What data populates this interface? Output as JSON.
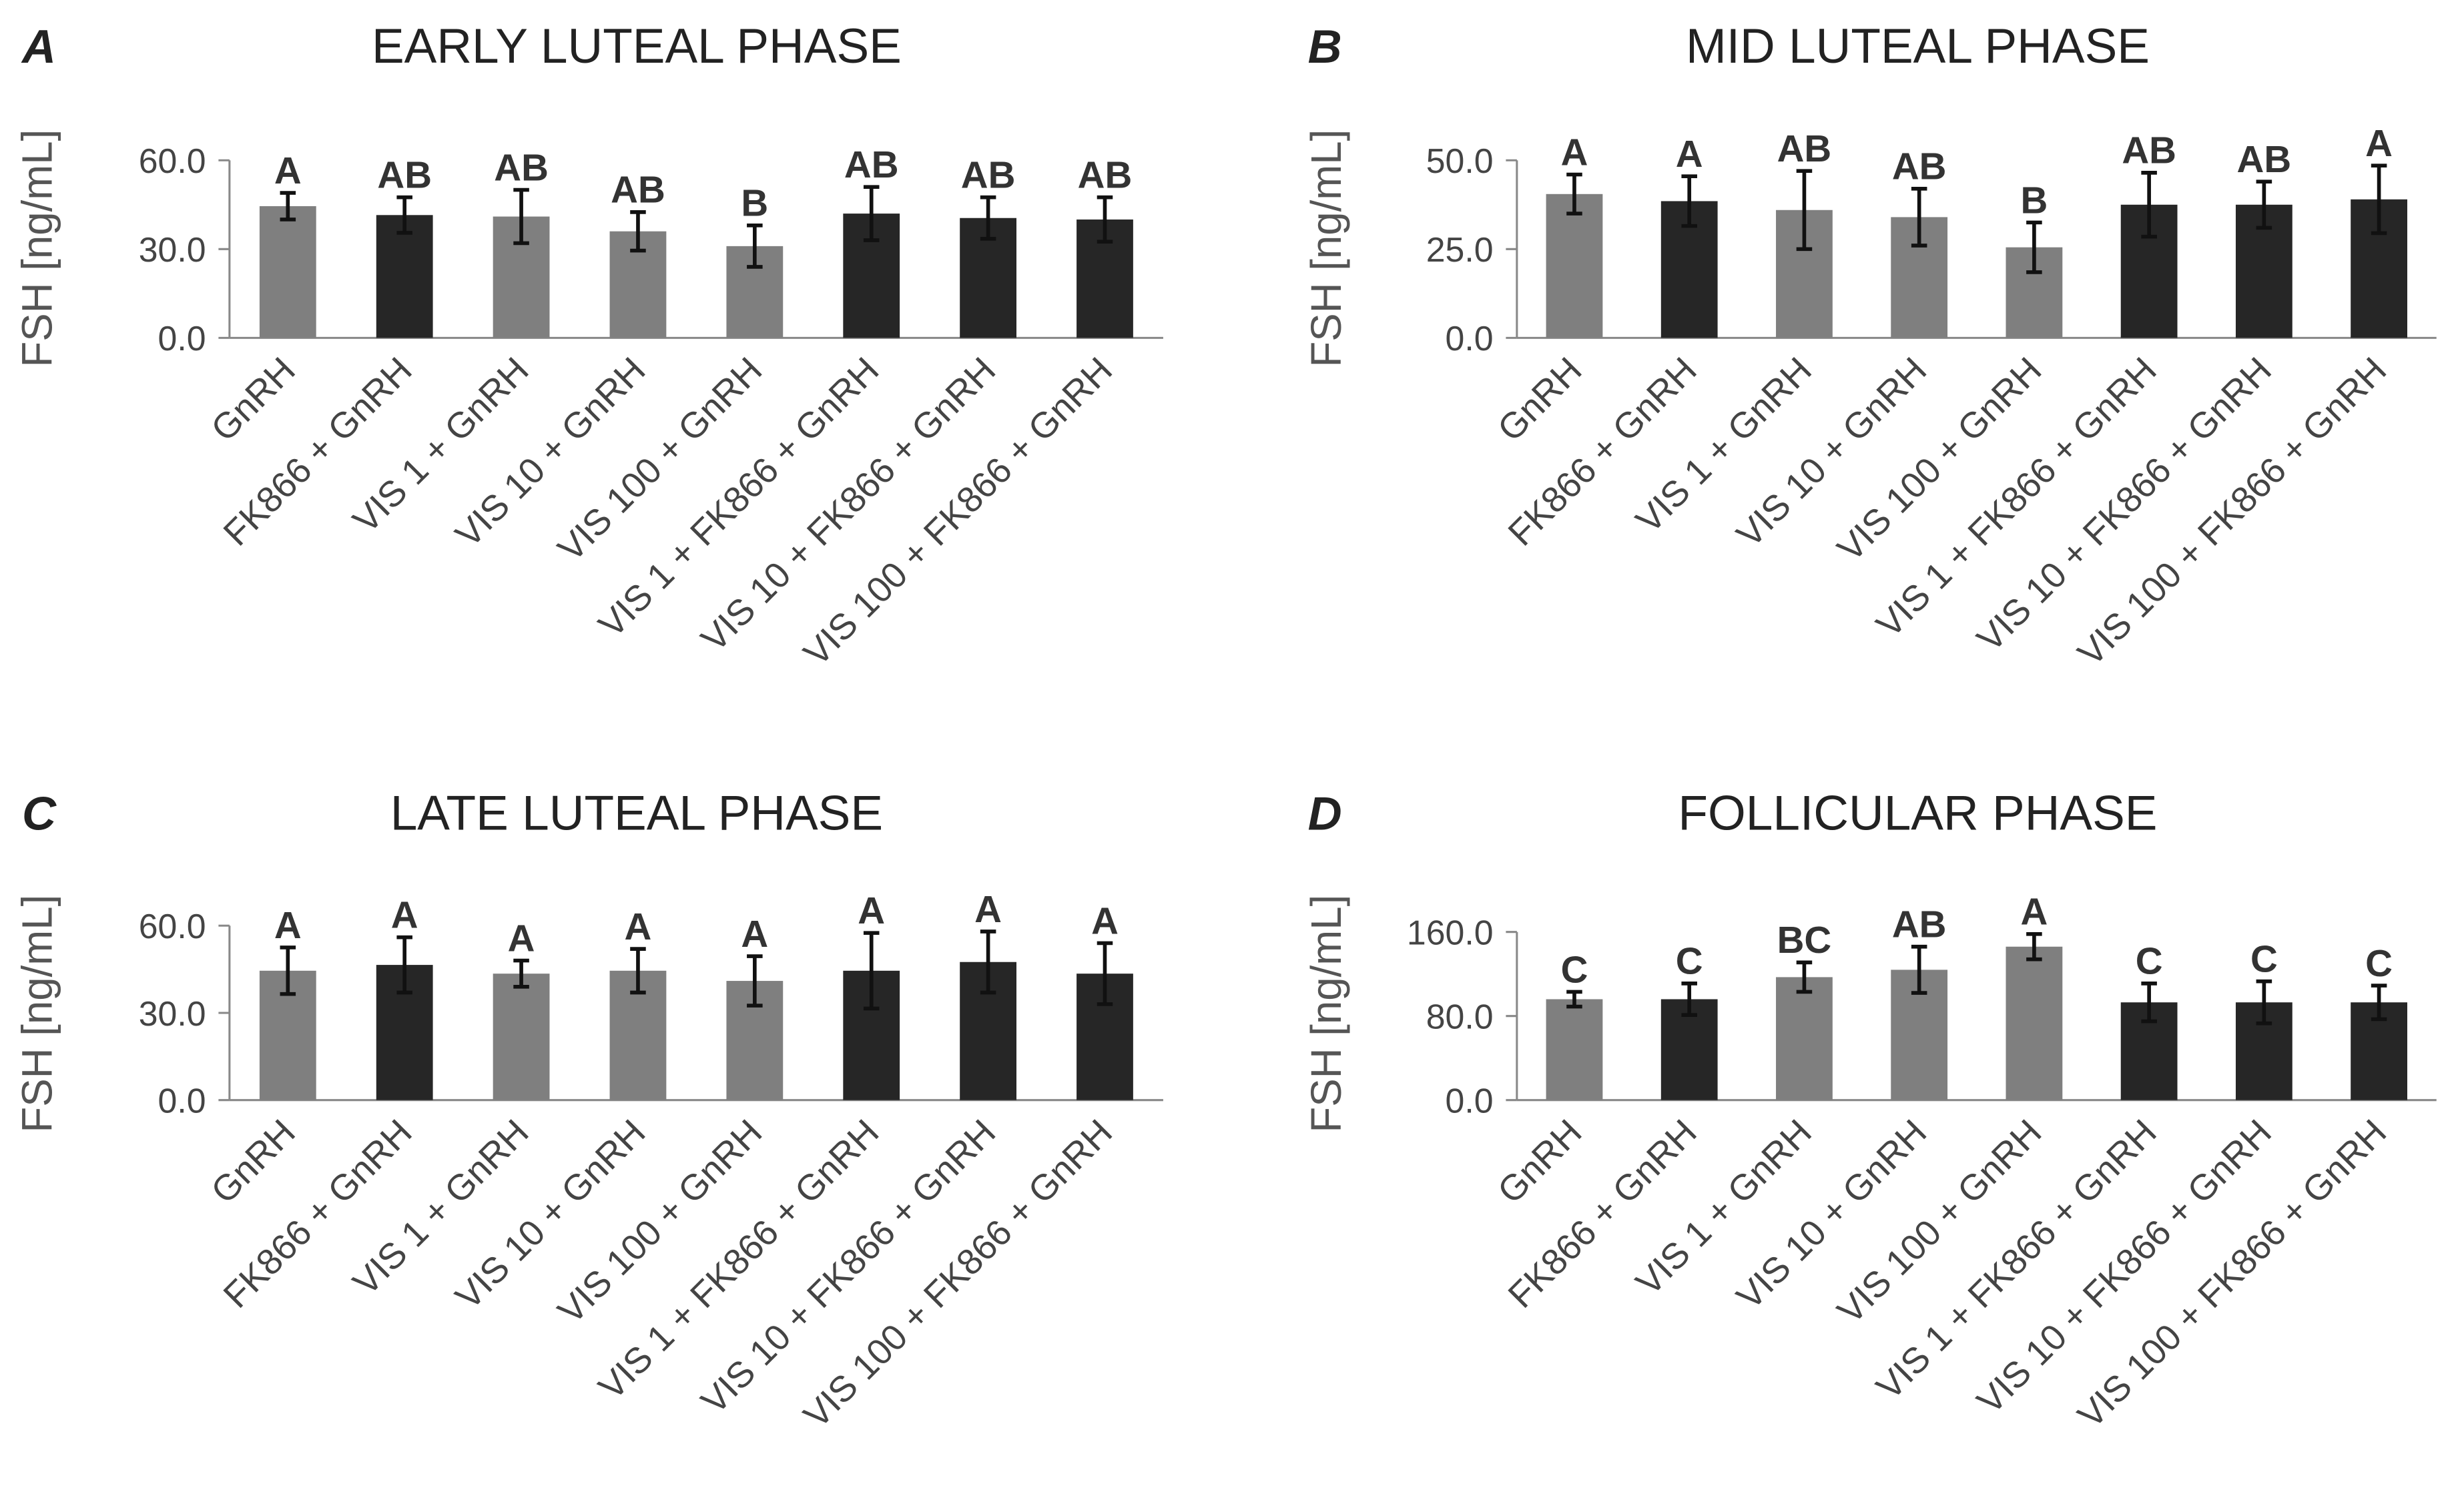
{
  "chart_data": [
    {
      "type": "bar",
      "letter": "A",
      "title": "EARLY LUTEAL PHASE",
      "ylabel": "FSH [ng/mL]",
      "xlabel": "",
      "ylim": [
        0,
        60
      ],
      "yticks": [
        "0.0",
        "30.0",
        "60.0"
      ],
      "grid": false,
      "categories": [
        "GnRH",
        "FK866 + GnRH",
        "VIS 1 + GnRH",
        "VIS 10 + GnRH",
        "VIS 100 + GnRH",
        "VIS 1 + FK866 + GnRH",
        "VIS 10 + FK866 + GnRH",
        "VIS 100 + FK866 + GnRH"
      ],
      "values": [
        44.5,
        41.5,
        41,
        36,
        31,
        42,
        40.5,
        40
      ],
      "errors": [
        4.5,
        6,
        9,
        6.5,
        7,
        9,
        7,
        7.5
      ],
      "significance": [
        "A",
        "AB",
        "AB",
        "AB",
        "B",
        "AB",
        "AB",
        "AB"
      ],
      "bar_colors": [
        "#7f7f7f",
        "#262626",
        "#7f7f7f",
        "#7f7f7f",
        "#7f7f7f",
        "#262626",
        "#262626",
        "#262626"
      ]
    },
    {
      "type": "bar",
      "letter": "B",
      "title": "MID LUTEAL PHASE",
      "ylabel": "FSH [ng/mL]",
      "xlabel": "",
      "ylim": [
        0,
        50
      ],
      "yticks": [
        "0.0",
        "25.0",
        "50.0"
      ],
      "grid": false,
      "categories": [
        "GnRH",
        "FK866 + GnRH",
        "VIS 1 + GnRH",
        "VIS 10 + GnRH",
        "VIS 100 + GnRH",
        "VIS 1 + FK866 + GnRH",
        "VIS 10 + FK866 + GnRH",
        "VIS 100 + FK866 + GnRH"
      ],
      "values": [
        40.5,
        38.5,
        36,
        34,
        25.5,
        37.5,
        37.5,
        39
      ],
      "errors": [
        5.5,
        7,
        11,
        8,
        7,
        9,
        6.5,
        9.5
      ],
      "significance": [
        "A",
        "A",
        "AB",
        "AB",
        "B",
        "AB",
        "AB",
        "A"
      ],
      "bar_colors": [
        "#7f7f7f",
        "#262626",
        "#7f7f7f",
        "#7f7f7f",
        "#7f7f7f",
        "#262626",
        "#262626",
        "#262626"
      ]
    },
    {
      "type": "bar",
      "letter": "C",
      "title": "LATE LUTEAL PHASE",
      "ylabel": "FSH [ng/mL]",
      "xlabel": "",
      "ylim": [
        0,
        60
      ],
      "yticks": [
        "0.0",
        "30.0",
        "60.0"
      ],
      "grid": false,
      "categories": [
        "GnRH",
        "FK866 + GnRH",
        "VIS 1 + GnRH",
        "VIS 10 + GnRH",
        "VIS 100 + GnRH",
        "VIS 1 + FK866 + GnRH",
        "VIS 10 + FK866 + GnRH",
        "VIS 100 + FK866 + GnRH"
      ],
      "values": [
        44.5,
        46.5,
        43.5,
        44.5,
        41,
        44.5,
        47.5,
        43.5
      ],
      "errors": [
        8,
        9.5,
        4.5,
        7.5,
        8.5,
        13,
        10.5,
        10.5
      ],
      "significance": [
        "A",
        "A",
        "A",
        "A",
        "A",
        "A",
        "A",
        "A"
      ],
      "bar_colors": [
        "#7f7f7f",
        "#262626",
        "#7f7f7f",
        "#7f7f7f",
        "#7f7f7f",
        "#262626",
        "#262626",
        "#262626"
      ]
    },
    {
      "type": "bar",
      "letter": "D",
      "title": "FOLLICULAR PHASE",
      "ylabel": "FSH [ng/mL]",
      "xlabel": "",
      "ylim": [
        0,
        160
      ],
      "yticks": [
        "0.0",
        "80.0",
        "160.0"
      ],
      "grid": false,
      "categories": [
        "GnRH",
        "FK866 + GnRH",
        "VIS 1 + GnRH",
        "VIS 10 + GnRH",
        "VIS 100 + GnRH",
        "VIS 1 + FK866 + GnRH",
        "VIS 10 + FK866 + GnRH",
        "VIS 100 + FK866 + GnRH"
      ],
      "values": [
        96,
        96,
        117,
        124,
        146,
        93,
        93,
        93
      ],
      "errors": [
        7,
        15,
        14,
        22,
        12,
        18,
        20,
        16
      ],
      "significance": [
        "C",
        "C",
        "BC",
        "AB",
        "A",
        "C",
        "C",
        "C"
      ],
      "bar_colors": [
        "#7f7f7f",
        "#262626",
        "#7f7f7f",
        "#7f7f7f",
        "#7f7f7f",
        "#262626",
        "#262626",
        "#262626"
      ]
    }
  ]
}
